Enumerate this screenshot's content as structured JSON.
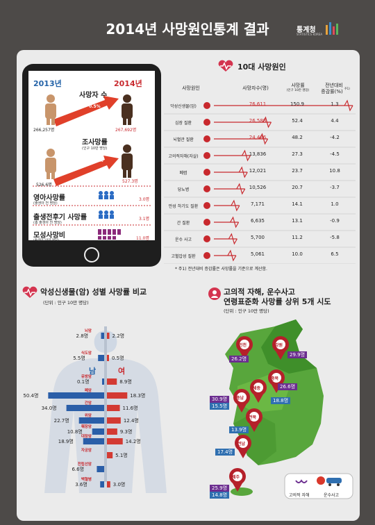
{
  "header": {
    "title": "2014년 사망원인통계 결과",
    "logo": "통계청",
    "logo_sub": "STATISTICS KOREA"
  },
  "tablet": {
    "year_prev": "2013년",
    "year_curr": "2014년",
    "deaths": {
      "label": "사망자 수",
      "change": "0.5%",
      "prev": "266,257명",
      "curr": "267,692명"
    },
    "rate": {
      "label": "조사망률",
      "sub": "(인구 10만 명당)",
      "change": "0.1%",
      "prev": "526.6명",
      "curr": "527.3명"
    },
    "infant": {
      "label": "영아사망률",
      "sub": "(출생아 천 명당)",
      "value": "3.0명"
    },
    "perinatal": {
      "label": "출생전후기 사망률",
      "sub": "(총 출생아 천 명당)",
      "value": "3.1명"
    },
    "maternal": {
      "label": "모성사망비",
      "sub": "(출생아 10만 명당)",
      "value": "11.0명"
    }
  },
  "top10": {
    "title": "10대 사망원인",
    "headers": {
      "cause": "사망원인",
      "count": "사망자수(명)",
      "rate": "사망률",
      "rate_sub": "(인구 10만 명당)",
      "change": "전년대비",
      "change_sub": "증감률(%)",
      "note_mark": "주1)"
    },
    "rows": [
      {
        "cause": "악성신생물(암)",
        "count": "76,611",
        "rate": "150.9",
        "change": "1.3",
        "value": 76611,
        "icon": "cancer-icon"
      },
      {
        "cause": "심장 질환",
        "count": "26,588",
        "rate": "52.4",
        "change": "4.4",
        "value": 26588,
        "icon": "heart-icon"
      },
      {
        "cause": "뇌혈관 질환",
        "count": "24,486",
        "rate": "48.2",
        "change": "-4.2",
        "value": 24486,
        "icon": "brain-icon"
      },
      {
        "cause": "고의적자해(자살)",
        "count": "13,836",
        "rate": "27.3",
        "change": "-4.5",
        "value": 13836,
        "icon": "self-harm-icon"
      },
      {
        "cause": "폐렴",
        "count": "12,021",
        "rate": "23.7",
        "change": "10.8",
        "value": 12021,
        "icon": "lung-icon"
      },
      {
        "cause": "당뇨병",
        "count": "10,526",
        "rate": "20.7",
        "change": "-3.7",
        "value": 10526,
        "icon": "diabetes-icon"
      },
      {
        "cause": "만성 하기도 질환",
        "count": "7,171",
        "rate": "14.1",
        "change": "1.0",
        "value": 7171,
        "icon": "airway-icon"
      },
      {
        "cause": "간 질환",
        "count": "6,635",
        "rate": "13.1",
        "change": "-0.9",
        "value": 6635,
        "icon": "liver-icon"
      },
      {
        "cause": "운수 사고",
        "count": "5,700",
        "rate": "11.2",
        "change": "-5.8",
        "value": 5700,
        "icon": "car-icon"
      },
      {
        "cause": "고혈압성 질환",
        "count": "5,061",
        "rate": "10.0",
        "change": "6.5",
        "value": 5061,
        "icon": "blood-pressure-icon"
      }
    ],
    "note": "* 주1) 전년대비 증감률은 사망률을 기준으로 계산함."
  },
  "cancer": {
    "title": "악성신생물(암) 성별 사망률 비교",
    "unit": "(단위 : 인구 10만 명당)",
    "male_label": "남",
    "female_label": "여",
    "rows": [
      {
        "site": "뇌암",
        "male": 2.8,
        "female": 2.2,
        "male_text": "2.8명",
        "female_text": "2.2명"
      },
      {
        "site": "식도암",
        "male": 5.5,
        "female": 0.5,
        "male_text": "5.5명",
        "female_text": "0.5명"
      },
      {
        "site": "유방암",
        "male": 0.1,
        "female": 8.9,
        "male_text": "0.1명",
        "female_text": "8.9명"
      },
      {
        "site": "폐암",
        "male": 50.4,
        "female": 18.3,
        "male_text": "50.4명",
        "female_text": "18.3명"
      },
      {
        "site": "간암",
        "male": 34.0,
        "female": 11.6,
        "male_text": "34.0명",
        "female_text": "11.6명"
      },
      {
        "site": "위암",
        "male": 22.7,
        "female": 12.4,
        "male_text": "22.7명",
        "female_text": "12.4명"
      },
      {
        "site": "췌장암",
        "male": 10.8,
        "female": 9.3,
        "male_text": "10.8명",
        "female_text": "9.3명"
      },
      {
        "site": "대장암",
        "male": 18.9,
        "female": 14.2,
        "male_text": "18.9명",
        "female_text": "14.2명"
      },
      {
        "site": "자궁암",
        "male": null,
        "female": 5.1,
        "male_text": "",
        "female_text": "5.1명"
      },
      {
        "site": "전립선암",
        "male": 6.6,
        "female": null,
        "male_text": "6.6명",
        "female_text": ""
      },
      {
        "site": "백혈병",
        "male": 3.6,
        "female": 3.0,
        "male_text": "3.6명",
        "female_text": "3.0명"
      }
    ]
  },
  "map": {
    "title1": "고의적 자해, 운수사고",
    "title2": "연령표준화 사망률 상위 5개 시도",
    "unit": "(단위 : 인구 10만 명당)",
    "pins": [
      {
        "name": "인천",
        "self_harm": "26.2명",
        "transport": ""
      },
      {
        "name": "강원",
        "self_harm": "29.9명",
        "transport": ""
      },
      {
        "name": "충북",
        "self_harm": "26.6명",
        "transport": "18.8명"
      },
      {
        "name": "세종",
        "self_harm": "",
        "transport": ""
      },
      {
        "name": "충남",
        "self_harm": "30.9명",
        "transport": "15.5명"
      },
      {
        "name": "전북",
        "self_harm": "",
        "transport": "13.9명"
      },
      {
        "name": "전남",
        "self_harm": "",
        "transport": "17.4명"
      },
      {
        "name": "제주",
        "self_harm": "25.9명",
        "transport": "14.8명"
      }
    ],
    "legend_self_harm": "고의적 자해",
    "legend_transport": "운수사고"
  },
  "chart_data": [
    {
      "type": "table",
      "title": "10대 사망원인",
      "columns": [
        "사망원인",
        "사망자수(명)",
        "사망률",
        "전년대비 증감률(%)"
      ],
      "rows": [
        [
          "악성신생물(암)",
          76611,
          150.9,
          1.3
        ],
        [
          "심장 질환",
          26588,
          52.4,
          4.4
        ],
        [
          "뇌혈관 질환",
          24486,
          48.2,
          -4.2
        ],
        [
          "고의적자해(자살)",
          13836,
          27.3,
          -4.5
        ],
        [
          "폐렴",
          12021,
          23.7,
          10.8
        ],
        [
          "당뇨병",
          10526,
          20.7,
          -3.7
        ],
        [
          "만성 하기도 질환",
          7171,
          14.1,
          1.0
        ],
        [
          "간 질환",
          6635,
          13.1,
          -0.9
        ],
        [
          "운수 사고",
          5700,
          11.2,
          -5.8
        ],
        [
          "고혈압성 질환",
          5061,
          10.0,
          6.5
        ]
      ]
    },
    {
      "type": "bar",
      "title": "악성신생물(암) 성별 사망률 비교",
      "categories": [
        "뇌암",
        "식도암",
        "유방암",
        "폐암",
        "간암",
        "위암",
        "췌장암",
        "대장암",
        "자궁암",
        "전립선암",
        "백혈병"
      ],
      "series": [
        {
          "name": "남",
          "values": [
            2.8,
            5.5,
            0.1,
            50.4,
            34.0,
            22.7,
            10.8,
            18.9,
            null,
            6.6,
            3.6
          ]
        },
        {
          "name": "여",
          "values": [
            2.2,
            0.5,
            8.9,
            18.3,
            11.6,
            12.4,
            9.3,
            14.2,
            5.1,
            null,
            3.0
          ]
        }
      ]
    }
  ]
}
